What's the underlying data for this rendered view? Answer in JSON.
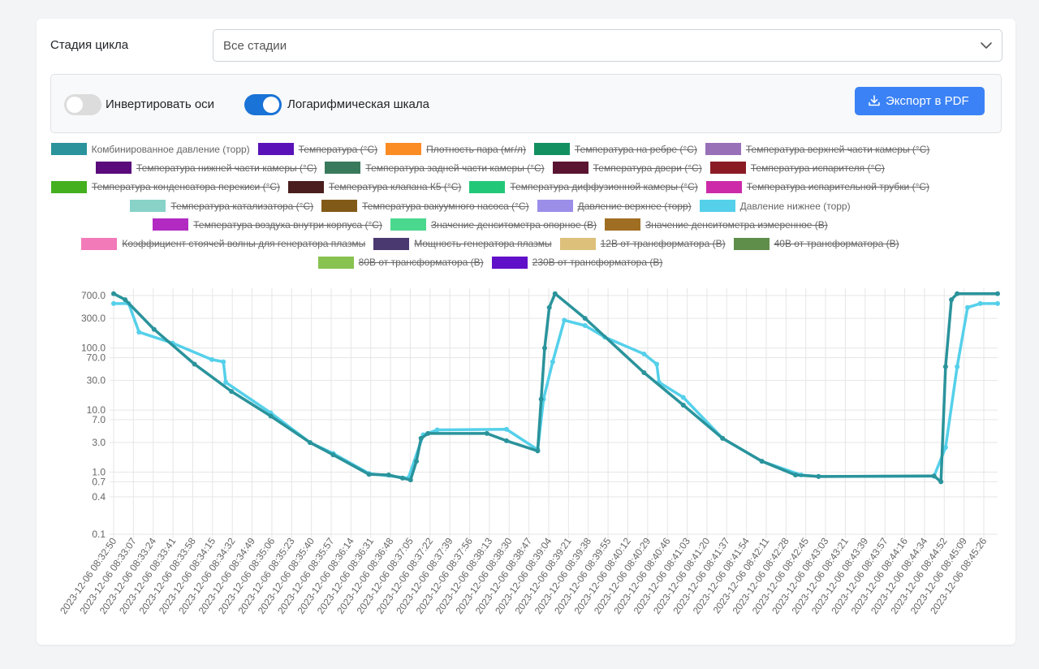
{
  "stage": {
    "label": "Стадия цикла",
    "value": "Все стадии"
  },
  "options": {
    "invert_label": "Инвертировать оси",
    "invert_on": false,
    "log_label": "Логарифмическая шкала",
    "log_on": true,
    "export_label": "Экспорт в PDF"
  },
  "colors": {
    "accent": "#3b82f6",
    "toggle_on": "#1a73d6",
    "combined": "#2a9a9d",
    "lower": "#55d0ea"
  },
  "legend": {
    "rows": [
      [
        {
          "name": "Комбинированное давление (торр)",
          "color": "#2a939b",
          "hidden": false
        },
        {
          "name": "Температура (°C)",
          "color": "#5a12b8",
          "hidden": true
        },
        {
          "name": "Плотность пара (мг/л)",
          "color": "#fb8c24",
          "hidden": true
        },
        {
          "name": "Температура на ребре (°C)",
          "color": "#129060",
          "hidden": true
        },
        {
          "name": "Температура верхней части камеры (°C)",
          "color": "#9870b8",
          "hidden": true
        }
      ],
      [
        {
          "name": "Температура нижней части камеры (°C)",
          "color": "#5a0a7a",
          "hidden": true
        },
        {
          "name": "Температура задней части камеры (°C)",
          "color": "#3a7a5c",
          "hidden": true
        },
        {
          "name": "Температура двери (°C)",
          "color": "#5a1432",
          "hidden": true
        },
        {
          "name": "Температура испарителя (°C)",
          "color": "#8a1a24",
          "hidden": true
        }
      ],
      [
        {
          "name": "Температура конденсатора перекиси (°C)",
          "color": "#44b020",
          "hidden": true
        },
        {
          "name": "Температура клапана К5 (°C)",
          "color": "#4a1e1e",
          "hidden": true
        },
        {
          "name": "Температура диффузионной камеры (°C)",
          "color": "#22c878",
          "hidden": true
        },
        {
          "name": "Температура испарительной трубки (°C)",
          "color": "#cc2aa8",
          "hidden": true
        }
      ],
      [
        {
          "name": "Температура катализатора (°C)",
          "color": "#88d2c8",
          "hidden": true
        },
        {
          "name": "Температура вакуумного насоса (°C)",
          "color": "#825a18",
          "hidden": true
        },
        {
          "name": "Давление верхнее (торр)",
          "color": "#9b8ee8",
          "hidden": true
        },
        {
          "name": "Давление нижнее (торр)",
          "color": "#55d0ea",
          "hidden": false
        }
      ],
      [
        {
          "name": "Температура воздуха внутри корпуса (°C)",
          "color": "#b22ac2",
          "hidden": true
        },
        {
          "name": "Значение денситометра опорное (В)",
          "color": "#4ad88e",
          "hidden": true
        },
        {
          "name": "Значение денситометра измеренное (В)",
          "color": "#a06e22",
          "hidden": true
        }
      ],
      [
        {
          "name": "Коэффициент стоячей волны для генератора плазмы",
          "color": "#f27ab8",
          "hidden": true
        },
        {
          "name": "Мощность генератора плазмы",
          "color": "#4a3870",
          "hidden": true
        },
        {
          "name": "12В от трансформатора (В)",
          "color": "#ddc07a",
          "hidden": true
        },
        {
          "name": "40В от трансформатора (В)",
          "color": "#5e8e4a",
          "hidden": true
        }
      ],
      [
        {
          "name": "80В от трансформатора (В)",
          "color": "#88c250",
          "hidden": true
        },
        {
          "name": "230В от трансформатора (В)",
          "color": "#6010c8",
          "hidden": true
        }
      ]
    ]
  },
  "chart_data": {
    "type": "line",
    "y_scale": "log",
    "ylim": [
      0.1,
      800
    ],
    "y_ticks": [
      {
        "v": 700,
        "label": "700.0"
      },
      {
        "v": 300,
        "label": "300.0"
      },
      {
        "v": 100,
        "label": "100.0"
      },
      {
        "v": 70,
        "label": "70.0"
      },
      {
        "v": 30,
        "label": "30.0"
      },
      {
        "v": 10,
        "label": "10.0"
      },
      {
        "v": 7,
        "label": "7.0"
      },
      {
        "v": 3,
        "label": "3.0"
      },
      {
        "v": 1,
        "label": "1.0"
      },
      {
        "v": 0.7,
        "label": "0.7"
      },
      {
        "v": 0.4,
        "label": "0.4"
      },
      {
        "v": 0.1,
        "label": "0.1"
      }
    ],
    "x_start": "2023-12-06 08:32:50",
    "x_end": "2023-12-06 08:45:35",
    "x_ticks": [
      "2023-12-06 08:32:50",
      "2023-12-06 08:33:07",
      "2023-12-06 08:33:24",
      "2023-12-06 08:33:41",
      "2023-12-06 08:33:58",
      "2023-12-06 08:34:15",
      "2023-12-06 08:34:32",
      "2023-12-06 08:34:49",
      "2023-12-06 08:35:06",
      "2023-12-06 08:35:23",
      "2023-12-06 08:35:40",
      "2023-12-06 08:35:57",
      "2023-12-06 08:36:14",
      "2023-12-06 08:36:31",
      "2023-12-06 08:36:48",
      "2023-12-06 08:37:05",
      "2023-12-06 08:37:22",
      "2023-12-06 08:37:39",
      "2023-12-06 08:37:56",
      "2023-12-06 08:38:13",
      "2023-12-06 08:38:30",
      "2023-12-06 08:38:47",
      "2023-12-06 08:39:04",
      "2023-12-06 08:39:21",
      "2023-12-06 08:39:38",
      "2023-12-06 08:39:55",
      "2023-12-06 08:40:12",
      "2023-12-06 08:40:29",
      "2023-12-06 08:40:46",
      "2023-12-06 08:41:03",
      "2023-12-06 08:41:20",
      "2023-12-06 08:41:37",
      "2023-12-06 08:41:54",
      "2023-12-06 08:42:11",
      "2023-12-06 08:42:28",
      "2023-12-06 08:42:45",
      "2023-12-06 08:43:03",
      "2023-12-06 08:43:21",
      "2023-12-06 08:43:39",
      "2023-12-06 08:43:57",
      "2023-12-06 08:44:16",
      "2023-12-06 08:44:34",
      "2023-12-06 08:44:52",
      "2023-12-06 08:45:09",
      "2023-12-06 08:45:26"
    ],
    "series": [
      {
        "name": "Комбинированное давление (торр)",
        "color": "#2a939b",
        "points": [
          [
            "08:32:50",
            750
          ],
          [
            "08:33:00",
            600
          ],
          [
            "08:33:25",
            200
          ],
          [
            "08:34:00",
            55
          ],
          [
            "08:34:32",
            20
          ],
          [
            "08:35:06",
            8
          ],
          [
            "08:35:40",
            3
          ],
          [
            "08:36:00",
            1.9
          ],
          [
            "08:36:31",
            0.92
          ],
          [
            "08:36:48",
            0.9
          ],
          [
            "08:37:00",
            0.8
          ],
          [
            "08:37:07",
            0.75
          ],
          [
            "08:37:12",
            1.5
          ],
          [
            "08:37:16",
            3.5
          ],
          [
            "08:37:22",
            4.2
          ],
          [
            "08:38:13",
            4.2
          ],
          [
            "08:38:30",
            3.2
          ],
          [
            "08:38:57",
            2.2
          ],
          [
            "08:39:00",
            15
          ],
          [
            "08:39:03",
            100
          ],
          [
            "08:39:07",
            450
          ],
          [
            "08:39:12",
            750
          ],
          [
            "08:39:38",
            300
          ],
          [
            "08:40:29",
            40
          ],
          [
            "08:41:03",
            12
          ],
          [
            "08:41:37",
            3.5
          ],
          [
            "08:42:11",
            1.5
          ],
          [
            "08:42:40",
            0.9
          ],
          [
            "08:43:00",
            0.85
          ],
          [
            "08:44:40",
            0.87
          ],
          [
            "08:44:46",
            0.7
          ],
          [
            "08:44:50",
            50
          ],
          [
            "08:44:55",
            600
          ],
          [
            "08:45:00",
            750
          ],
          [
            "08:45:35",
            750
          ]
        ]
      },
      {
        "name": "Давление нижнее (торр)",
        "color": "#55d0ea",
        "points": [
          [
            "08:32:50",
            520
          ],
          [
            "08:33:03",
            520
          ],
          [
            "08:33:12",
            180
          ],
          [
            "08:33:41",
            120
          ],
          [
            "08:34:15",
            65
          ],
          [
            "08:34:25",
            60
          ],
          [
            "08:34:27",
            28
          ],
          [
            "08:35:06",
            9
          ],
          [
            "08:35:40",
            3
          ],
          [
            "08:36:00",
            2
          ],
          [
            "08:36:31",
            0.95
          ],
          [
            "08:37:05",
            0.8
          ],
          [
            "08:37:18",
            4
          ],
          [
            "08:37:30",
            4.8
          ],
          [
            "08:38:30",
            4.9
          ],
          [
            "08:38:57",
            2.3
          ],
          [
            "08:39:02",
            15
          ],
          [
            "08:39:10",
            60
          ],
          [
            "08:39:20",
            280
          ],
          [
            "08:39:38",
            230
          ],
          [
            "08:39:55",
            150
          ],
          [
            "08:40:29",
            80
          ],
          [
            "08:40:40",
            55
          ],
          [
            "08:40:42",
            28
          ],
          [
            "08:41:03",
            16
          ],
          [
            "08:41:37",
            3.5
          ],
          [
            "08:42:11",
            1.5
          ],
          [
            "08:42:45",
            0.9
          ],
          [
            "08:43:00",
            0.85
          ],
          [
            "08:44:40",
            0.86
          ],
          [
            "08:44:50",
            2.5
          ],
          [
            "08:45:00",
            50
          ],
          [
            "08:45:09",
            450
          ],
          [
            "08:45:20",
            520
          ],
          [
            "08:45:35",
            520
          ]
        ]
      }
    ]
  }
}
